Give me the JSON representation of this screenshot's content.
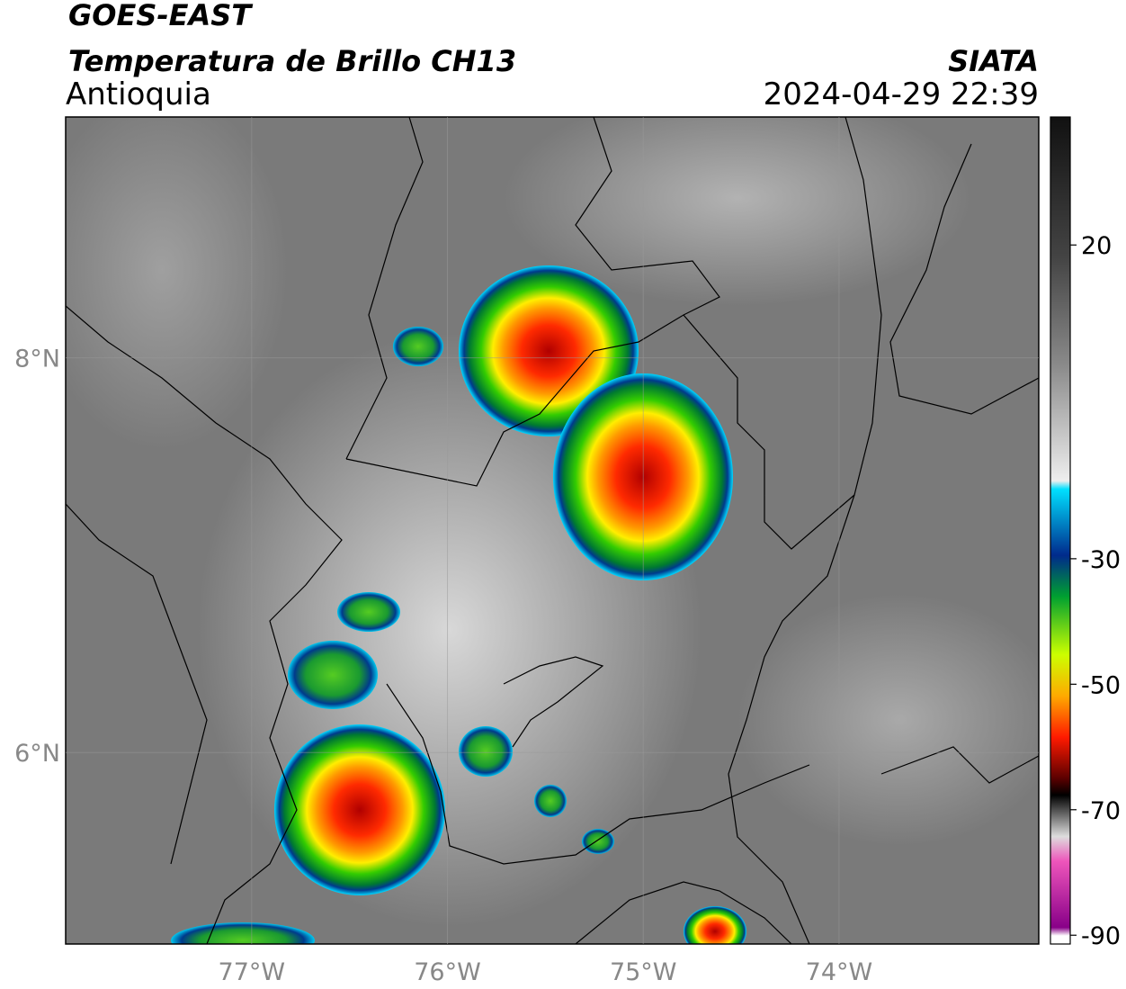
{
  "header": {
    "title": "GOES-EAST",
    "subtitle": "Temperatura de Brillo CH13",
    "region": "Antioquia",
    "source": "SIATA",
    "datetime": "2024-04-29 22:39"
  },
  "map": {
    "xlim": [
      -77.95,
      -72.98
    ],
    "ylim": [
      5.03,
      9.22
    ],
    "xticks": [
      {
        "value": -77,
        "label": "77°W"
      },
      {
        "value": -76,
        "label": "76°W"
      },
      {
        "value": -75,
        "label": "75°W"
      },
      {
        "value": -74,
        "label": "74°W"
      }
    ],
    "yticks": [
      {
        "value": 6,
        "label": "6°N"
      },
      {
        "value": 8,
        "label": "8°N"
      }
    ]
  },
  "colorbar": {
    "lim": [
      -91.4,
      40.4
    ],
    "ticks": [
      20,
      -30,
      -50,
      -70,
      -90
    ]
  }
}
